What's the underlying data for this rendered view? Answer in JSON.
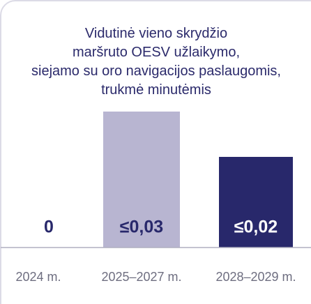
{
  "chart_data": {
    "type": "bar",
    "title": [
      "Vidutinė vieno skrydžio",
      "maršruto OESV užlaikymo,",
      "siejamo su oro navigacijos paslaugomis,",
      "trukmė minutėmis"
    ],
    "categories": [
      "2024 m.",
      "2025–2027 m.",
      "2028–2029 m."
    ],
    "values": [
      0,
      0.03,
      0.02
    ],
    "value_labels": [
      "0",
      "≤0,03",
      "≤0,02"
    ],
    "colors": [
      "#b8b5d1",
      "#b8b5d1",
      "#28286b"
    ]
  }
}
